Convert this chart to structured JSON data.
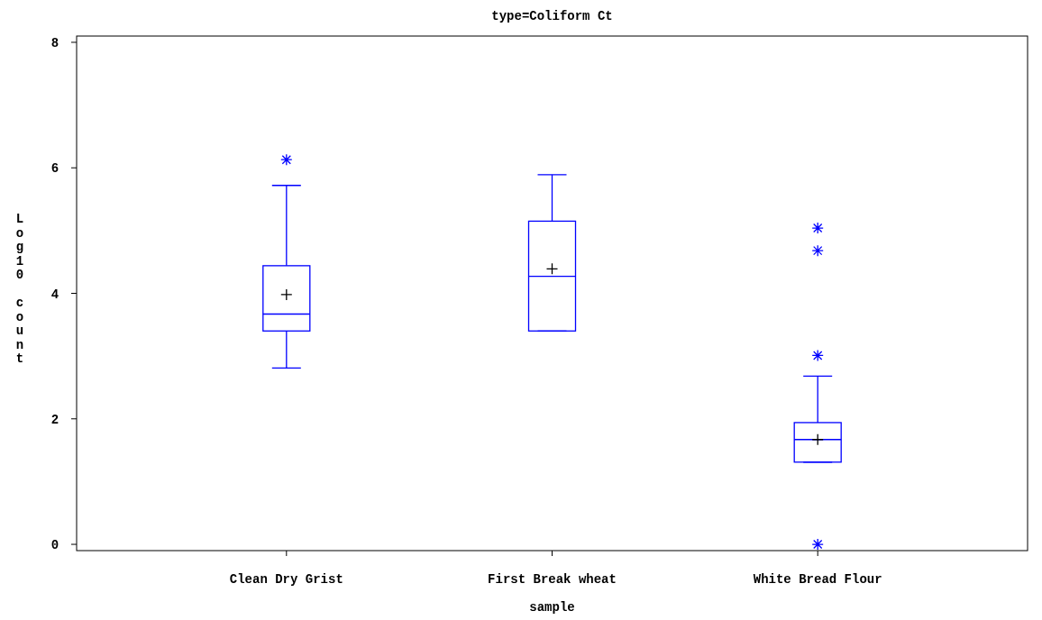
{
  "chart_data": {
    "type": "box",
    "title": "type=Coliform Ct",
    "xlabel": "sample",
    "ylabel": "Log10 count",
    "categories": [
      "Clean Dry Grist",
      "First Break wheat",
      "White Bread Flour"
    ],
    "color": "#0000ff",
    "boxes": [
      {
        "low": 2.81,
        "q1": 3.4,
        "median": 3.67,
        "q3": 4.44,
        "high": 5.72,
        "mean": 3.98,
        "outliers": [
          6.13
        ]
      },
      {
        "low": 3.4,
        "q1": 3.4,
        "median": 4.27,
        "q3": 5.15,
        "high": 5.89,
        "mean": 4.39
      },
      {
        "low": 1.31,
        "q1": 1.31,
        "median": 1.67,
        "q3": 1.94,
        "high": 2.68,
        "mean": 1.67,
        "outliers": [
          5.04,
          4.68,
          3.01,
          0
        ]
      }
    ],
    "ylim": [
      -0.1,
      8.1
    ],
    "yticks": [
      0,
      2,
      4,
      6,
      8
    ],
    "grid": false
  }
}
